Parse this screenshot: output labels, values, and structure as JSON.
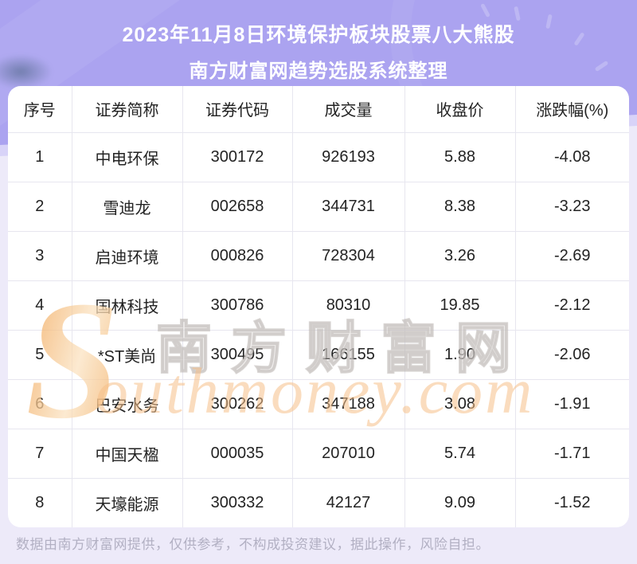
{
  "header": {
    "title_line1": "2023年11月8日环境保护板块股票八大熊股",
    "title_line2": "南方财富网趋势选股系统整理"
  },
  "table": {
    "columns": [
      "序号",
      "证券简称",
      "证券代码",
      "成交量",
      "收盘价",
      "涨跌幅(%)"
    ],
    "rows": [
      [
        "1",
        "中电环保",
        "300172",
        "926193",
        "5.88",
        "-4.08"
      ],
      [
        "2",
        "雪迪龙",
        "002658",
        "344731",
        "8.38",
        "-3.23"
      ],
      [
        "3",
        "启迪环境",
        "000826",
        "728304",
        "3.26",
        "-2.69"
      ],
      [
        "4",
        "国林科技",
        "300786",
        "80310",
        "19.85",
        "-2.12"
      ],
      [
        "5",
        "*ST美尚",
        "300495",
        "166155",
        "1.90",
        "-2.06"
      ],
      [
        "6",
        "巴安水务",
        "300262",
        "347188",
        "3.08",
        "-1.91"
      ],
      [
        "7",
        "中国天楹",
        "000035",
        "207010",
        "5.74",
        "-1.71"
      ],
      [
        "8",
        "天壕能源",
        "300332",
        "42127",
        "9.09",
        "-1.52"
      ]
    ]
  },
  "watermark": {
    "s_letter": "S",
    "cn_text": "南方财富网",
    "en_text": "outhmoney.com"
  },
  "footer": {
    "disclaimer": "数据由南方财富网提供，仅供参考，不构成投资建议，据此操作，风险自担。"
  },
  "colors": {
    "header_purple": "#7b71d8",
    "page_background": "#edeaf9",
    "watermark_orange": "#f5a95f",
    "watermark_gray": "#d8d4d2",
    "grid_line": "#e7e6ef",
    "text_dark": "#232323"
  }
}
